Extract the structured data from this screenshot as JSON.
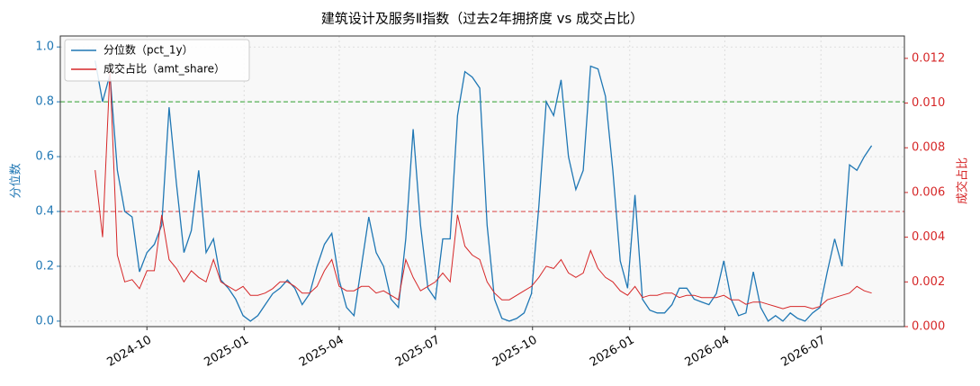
{
  "chart_data": {
    "type": "line",
    "title": "建筑设计及服务Ⅱ指数（过去2年拥挤度 vs 成交占比）",
    "y_label": "分位数",
    "y2_label": "成交占比",
    "x": [
      "2024-08-13",
      "2024-08-20",
      "2024-08-27",
      "2024-09-03",
      "2024-09-10",
      "2024-09-17",
      "2024-09-24",
      "2024-10-01",
      "2024-10-08",
      "2024-10-15",
      "2024-10-22",
      "2024-10-29",
      "2024-11-05",
      "2024-11-12",
      "2024-11-19",
      "2024-11-26",
      "2024-12-03",
      "2024-12-10",
      "2024-12-17",
      "2024-12-24",
      "2024-12-31",
      "2025-01-07",
      "2025-01-14",
      "2025-01-21",
      "2025-01-28",
      "2025-02-04",
      "2025-02-11",
      "2025-02-18",
      "2025-02-25",
      "2025-03-04",
      "2025-03-11",
      "2025-03-18",
      "2025-03-25",
      "2025-04-01",
      "2025-04-08",
      "2025-04-15",
      "2025-04-22",
      "2025-04-29",
      "2025-05-06",
      "2025-05-13",
      "2025-05-20",
      "2025-05-27",
      "2025-06-03",
      "2025-06-10",
      "2025-06-17",
      "2025-06-24",
      "2025-07-01",
      "2025-07-08",
      "2025-07-15",
      "2025-07-22",
      "2025-07-29",
      "2025-08-05",
      "2025-08-12",
      "2025-08-19",
      "2025-08-26",
      "2025-09-02",
      "2025-09-09",
      "2025-09-16",
      "2025-09-23",
      "2025-09-30",
      "2025-10-07",
      "2025-10-14",
      "2025-10-21",
      "2025-10-28",
      "2025-11-04",
      "2025-11-11",
      "2025-11-18",
      "2025-11-25",
      "2025-12-02",
      "2025-12-09",
      "2025-12-16",
      "2025-12-23",
      "2025-12-30",
      "2026-01-06",
      "2026-01-13",
      "2026-01-20",
      "2026-01-27",
      "2026-02-03",
      "2026-02-10",
      "2026-02-17",
      "2026-02-24",
      "2026-03-03",
      "2026-03-10",
      "2026-03-17",
      "2026-03-24",
      "2026-03-31",
      "2026-04-07",
      "2026-04-14",
      "2026-04-21",
      "2026-04-28",
      "2026-05-05",
      "2026-05-12",
      "2026-05-19",
      "2026-05-26",
      "2026-06-02",
      "2026-06-09",
      "2026-06-16",
      "2026-06-23",
      "2026-06-30",
      "2026-07-07",
      "2026-07-14",
      "2026-07-21",
      "2026-07-28",
      "2026-08-04",
      "2026-08-11",
      "2026-08-18"
    ],
    "series": [
      {
        "name": "分位数（pct_1y）",
        "color": "#1f77b4",
        "axis": "y",
        "values": [
          0.95,
          0.8,
          0.9,
          0.55,
          0.4,
          0.38,
          0.18,
          0.25,
          0.28,
          0.35,
          0.78,
          0.5,
          0.25,
          0.33,
          0.55,
          0.25,
          0.3,
          0.15,
          0.12,
          0.08,
          0.02,
          0,
          0.02,
          0.06,
          0.1,
          0.12,
          0.15,
          0.12,
          0.06,
          0.1,
          0.2,
          0.28,
          0.32,
          0.15,
          0.05,
          0.02,
          0.2,
          0.38,
          0.25,
          0.2,
          0.08,
          0.05,
          0.3,
          0.7,
          0.35,
          0.12,
          0.08,
          0.3,
          0.3,
          0.75,
          0.91,
          0.89,
          0.85,
          0.35,
          0.08,
          0.01,
          0,
          0.01,
          0.03,
          0.1,
          0.42,
          0.8,
          0.75,
          0.88,
          0.6,
          0.48,
          0.55,
          0.93,
          0.92,
          0.82,
          0.55,
          0.22,
          0.12,
          0.46,
          0.08,
          0.04,
          0.03,
          0.03,
          0.06,
          0.12,
          0.12,
          0.08,
          0.07,
          0.06,
          0.1,
          0.22,
          0.08,
          0.02,
          0.03,
          0.18,
          0.05,
          0,
          0.02,
          0,
          0.03,
          0.01,
          0,
          0.03,
          0.05,
          0.18,
          0.3,
          0.2,
          0.57,
          0.55,
          0.6,
          0.64
        ]
      },
      {
        "name": "成交占比（amt_share）",
        "color": "#d62728",
        "axis": "y2",
        "values": [
          0.007,
          0.004,
          0.0115,
          0.0032,
          0.002,
          0.0021,
          0.0017,
          0.0025,
          0.0025,
          0.005,
          0.003,
          0.0026,
          0.002,
          0.0025,
          0.0022,
          0.002,
          0.003,
          0.002,
          0.0018,
          0.0016,
          0.0018,
          0.0014,
          0.0014,
          0.0015,
          0.0017,
          0.002,
          0.002,
          0.0018,
          0.0015,
          0.0015,
          0.0018,
          0.0025,
          0.003,
          0.0018,
          0.0016,
          0.0016,
          0.0018,
          0.0018,
          0.0015,
          0.0016,
          0.0014,
          0.0012,
          0.003,
          0.0022,
          0.0016,
          0.0018,
          0.002,
          0.0024,
          0.002,
          0.005,
          0.0036,
          0.0032,
          0.003,
          0.002,
          0.0015,
          0.0012,
          0.0012,
          0.0014,
          0.0016,
          0.0018,
          0.0022,
          0.0027,
          0.0026,
          0.003,
          0.0024,
          0.0022,
          0.0024,
          0.0034,
          0.0026,
          0.0022,
          0.002,
          0.0016,
          0.0014,
          0.0018,
          0.0013,
          0.0014,
          0.0014,
          0.0015,
          0.0015,
          0.0013,
          0.0014,
          0.0014,
          0.0013,
          0.0013,
          0.0013,
          0.0014,
          0.0012,
          0.0012,
          0.001,
          0.0011,
          0.0011,
          0.001,
          0.0009,
          0.0008,
          0.0009,
          0.0009,
          0.0009,
          0.0008,
          0.0009,
          0.0012,
          0.0013,
          0.0014,
          0.0015,
          0.0018,
          0.0016,
          0.0015
        ]
      }
    ],
    "hlines": [
      {
        "value": 0.8,
        "color": "#2ca02c"
      },
      {
        "value": 0.4,
        "color": "#d62728"
      }
    ],
    "xlim": [
      "2024-07-11",
      "2026-09-18"
    ],
    "xticks": [
      "2024-10",
      "2025-01",
      "2025-04",
      "2025-07",
      "2025-10",
      "2026-01",
      "2026-04",
      "2026-07"
    ],
    "ylim": [
      -0.02,
      1.04
    ],
    "yticks": [
      {
        "value": 0,
        "label": "0.0"
      },
      0.2,
      0.4,
      0.6,
      0.8,
      {
        "value": 1,
        "label": "1.0"
      }
    ],
    "y2lim": [
      0,
      0.013
    ],
    "y2ticks": [
      {
        "value": 0,
        "label": "0.000"
      },
      {
        "value": 0.002,
        "label": "0.002"
      },
      {
        "value": 0.004,
        "label": "0.004"
      },
      {
        "value": 0.006,
        "label": "0.006"
      },
      {
        "value": 0.008,
        "label": "0.008"
      },
      {
        "value": 0.01,
        "label": "0.010"
      },
      {
        "value": 0.012,
        "label": "0.012"
      }
    ],
    "grid": true,
    "legend": "upper left"
  }
}
